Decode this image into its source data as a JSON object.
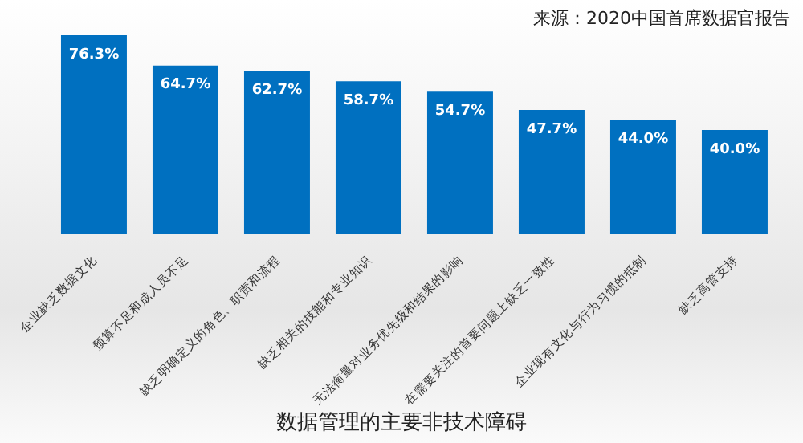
{
  "chart_data": {
    "type": "bar",
    "title": "数据管理的主要非技术障碍",
    "annotations": [
      "来源：2020中国首席数据官报告"
    ],
    "categories": [
      "企业缺乏数据文化",
      "预算不足和成人员不足",
      "缺乏明确定义的角色、职责和流程",
      "缺乏相关的技能和专业知识",
      "无法衡量对业务优先级和结果的影响",
      "在需要关注的首要问题上缺乏一致性",
      "企业现有文化与行为习惯的抵制",
      "缺乏高管支持"
    ],
    "values": [
      76.3,
      64.7,
      62.7,
      58.7,
      54.7,
      47.7,
      44.0,
      40.0
    ],
    "value_labels": [
      "76.3%",
      "64.7%",
      "62.7%",
      "58.7%",
      "54.7%",
      "47.7%",
      "44.0%",
      "40.0%"
    ],
    "color": "#0070c0",
    "grid": false,
    "legend": false
  }
}
